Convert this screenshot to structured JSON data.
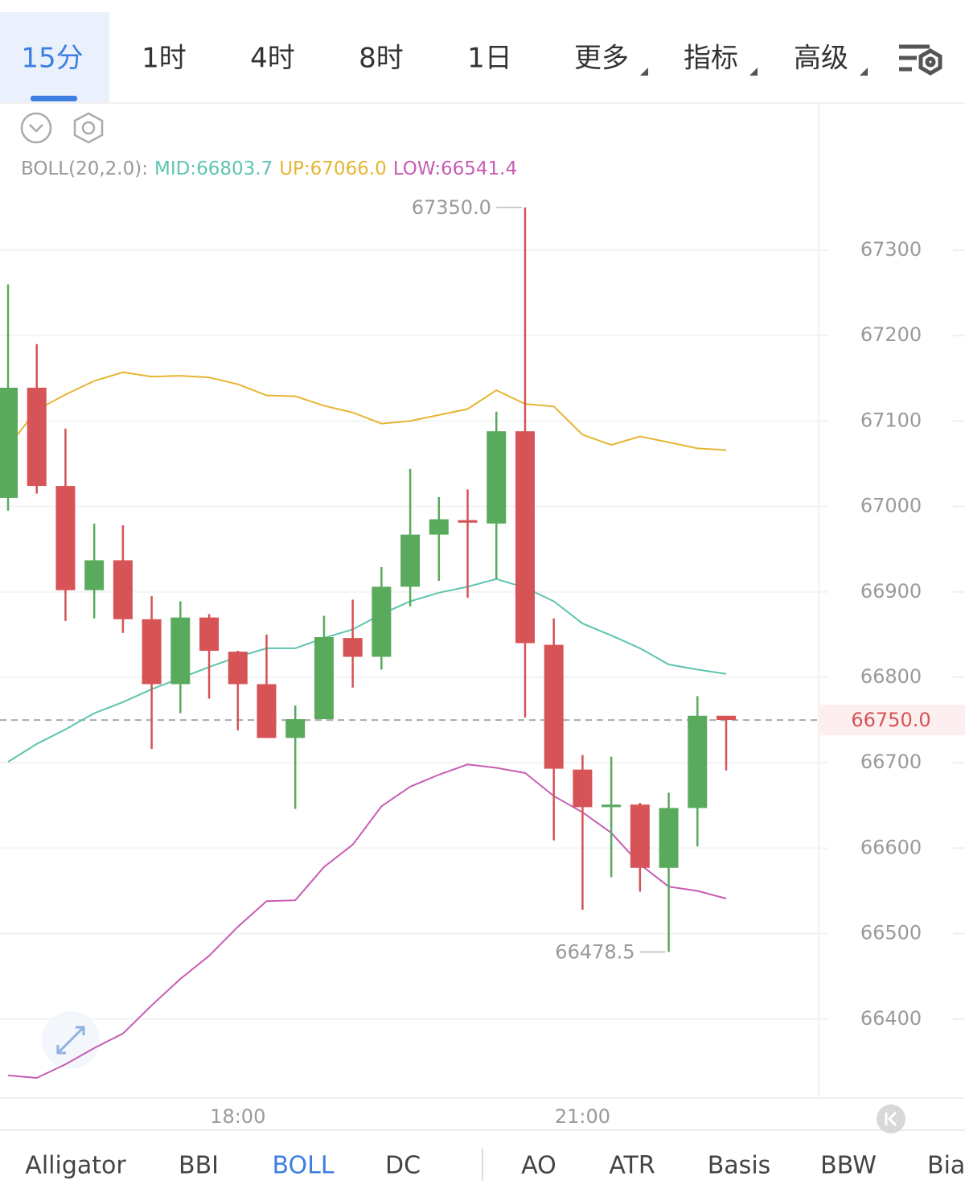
{
  "toolbar": {
    "active": 0,
    "tabs": [
      {
        "label": "15分"
      },
      {
        "label": "1时"
      },
      {
        "label": "4时"
      },
      {
        "label": "8时"
      },
      {
        "label": "1日"
      },
      {
        "label": "更多",
        "dropdown": true
      },
      {
        "label": "指标",
        "dropdown": true
      },
      {
        "label": "高级",
        "dropdown": true
      }
    ]
  },
  "indicator_bar": {
    "active": 2,
    "tabs": [
      "Alligator",
      "BBI",
      "BOLL",
      "DC",
      "AO",
      "ATR",
      "Basis",
      "BBW",
      "Bias"
    ]
  },
  "chart_data": {
    "type": "candlestick",
    "indicator_label": "BOLL(20,2.0):",
    "categories": [
      null,
      null,
      null,
      null,
      null,
      null,
      null,
      null,
      "18:00",
      null,
      null,
      null,
      null,
      null,
      null,
      null,
      null,
      null,
      null,
      null,
      "21:00",
      null,
      null,
      null,
      null,
      null
    ],
    "open": [
      67010,
      67139,
      67024,
      66902,
      66937,
      66868,
      66792,
      66870,
      66830,
      66792,
      66729,
      66751,
      66846,
      66824,
      66906,
      66967,
      66984,
      66980,
      67088,
      66838,
      66692,
      66648,
      66651,
      66577,
      66647,
      66755
    ],
    "high": [
      67260,
      67190,
      67091,
      66980,
      66978,
      66895,
      66889,
      66874,
      66831,
      66850,
      66767,
      66872,
      66891,
      66929,
      67044,
      67011,
      67020,
      67111,
      67350,
      66869,
      66709,
      66707,
      66653,
      66665,
      66778,
      66755
    ],
    "low": [
      66995,
      67015,
      66866,
      66869,
      66852,
      66716,
      66758,
      66775,
      66738,
      66729,
      66646,
      66751,
      66788,
      66809,
      66883,
      66913,
      66893,
      66915,
      66753,
      66609,
      66528,
      66566,
      66549,
      66478.5,
      66602,
      66691
    ],
    "close": [
      67139,
      67024,
      66902,
      66937,
      66868,
      66792,
      66870,
      66831,
      66792,
      66729,
      66751,
      66847,
      66824,
      66906,
      66967,
      66985,
      66981,
      67088,
      66840,
      66693,
      66648,
      66651,
      66577,
      66647,
      66755,
      66750
    ],
    "up_color": "#5aaa5e",
    "down_color": "#d65356",
    "series": [
      {
        "name": "MID:",
        "color": "#5ec4b0",
        "last": {
          "value": 66803.7,
          "label": "66803.7"
        },
        "values": [
          66701,
          66722,
          66739,
          66758,
          66771,
          66786,
          66799,
          66812,
          66824,
          66834,
          66834,
          66846,
          66856,
          66874,
          66889,
          66899,
          66906,
          66915,
          66905,
          66889,
          66863,
          66849,
          66834,
          66815,
          66809,
          66804
        ]
      },
      {
        "name": "UP:",
        "color": "#e6b532",
        "last": {
          "value": 67066,
          "label": "67066.0"
        },
        "values": [
          67070,
          67113,
          67131,
          67147,
          67157,
          67152,
          67153,
          67151,
          67143,
          67130,
          67129,
          67118,
          67110,
          67097,
          67100,
          67107,
          67114,
          67136,
          67120,
          67117,
          67084,
          67072,
          67082,
          67075,
          67068,
          67066
        ]
      },
      {
        "name": "LOW:",
        "color": "#c75cb3",
        "last": {
          "value": 66541.4,
          "label": "66541.4"
        },
        "values": [
          66334,
          66331,
          66347,
          66366,
          66383,
          66416,
          66447,
          66474,
          66508,
          66538,
          66539,
          66578,
          66604,
          66649,
          66672,
          66686,
          66698,
          66694,
          66688,
          66661,
          66642,
          66618,
          66581,
          66555,
          66550,
          66541
        ]
      }
    ],
    "max_label": {
      "value": 67350,
      "label": "67350.0"
    },
    "min_label": {
      "value": 66478.5,
      "label": "66478.5"
    },
    "last_price": {
      "value": 66750,
      "label": "66750.0"
    },
    "ylim": [
      66307.5,
      67472.3
    ],
    "yticks": [
      66400,
      66500,
      66600,
      66700,
      66800,
      66900,
      67000,
      67100,
      67200,
      67300
    ],
    "grid": true
  }
}
